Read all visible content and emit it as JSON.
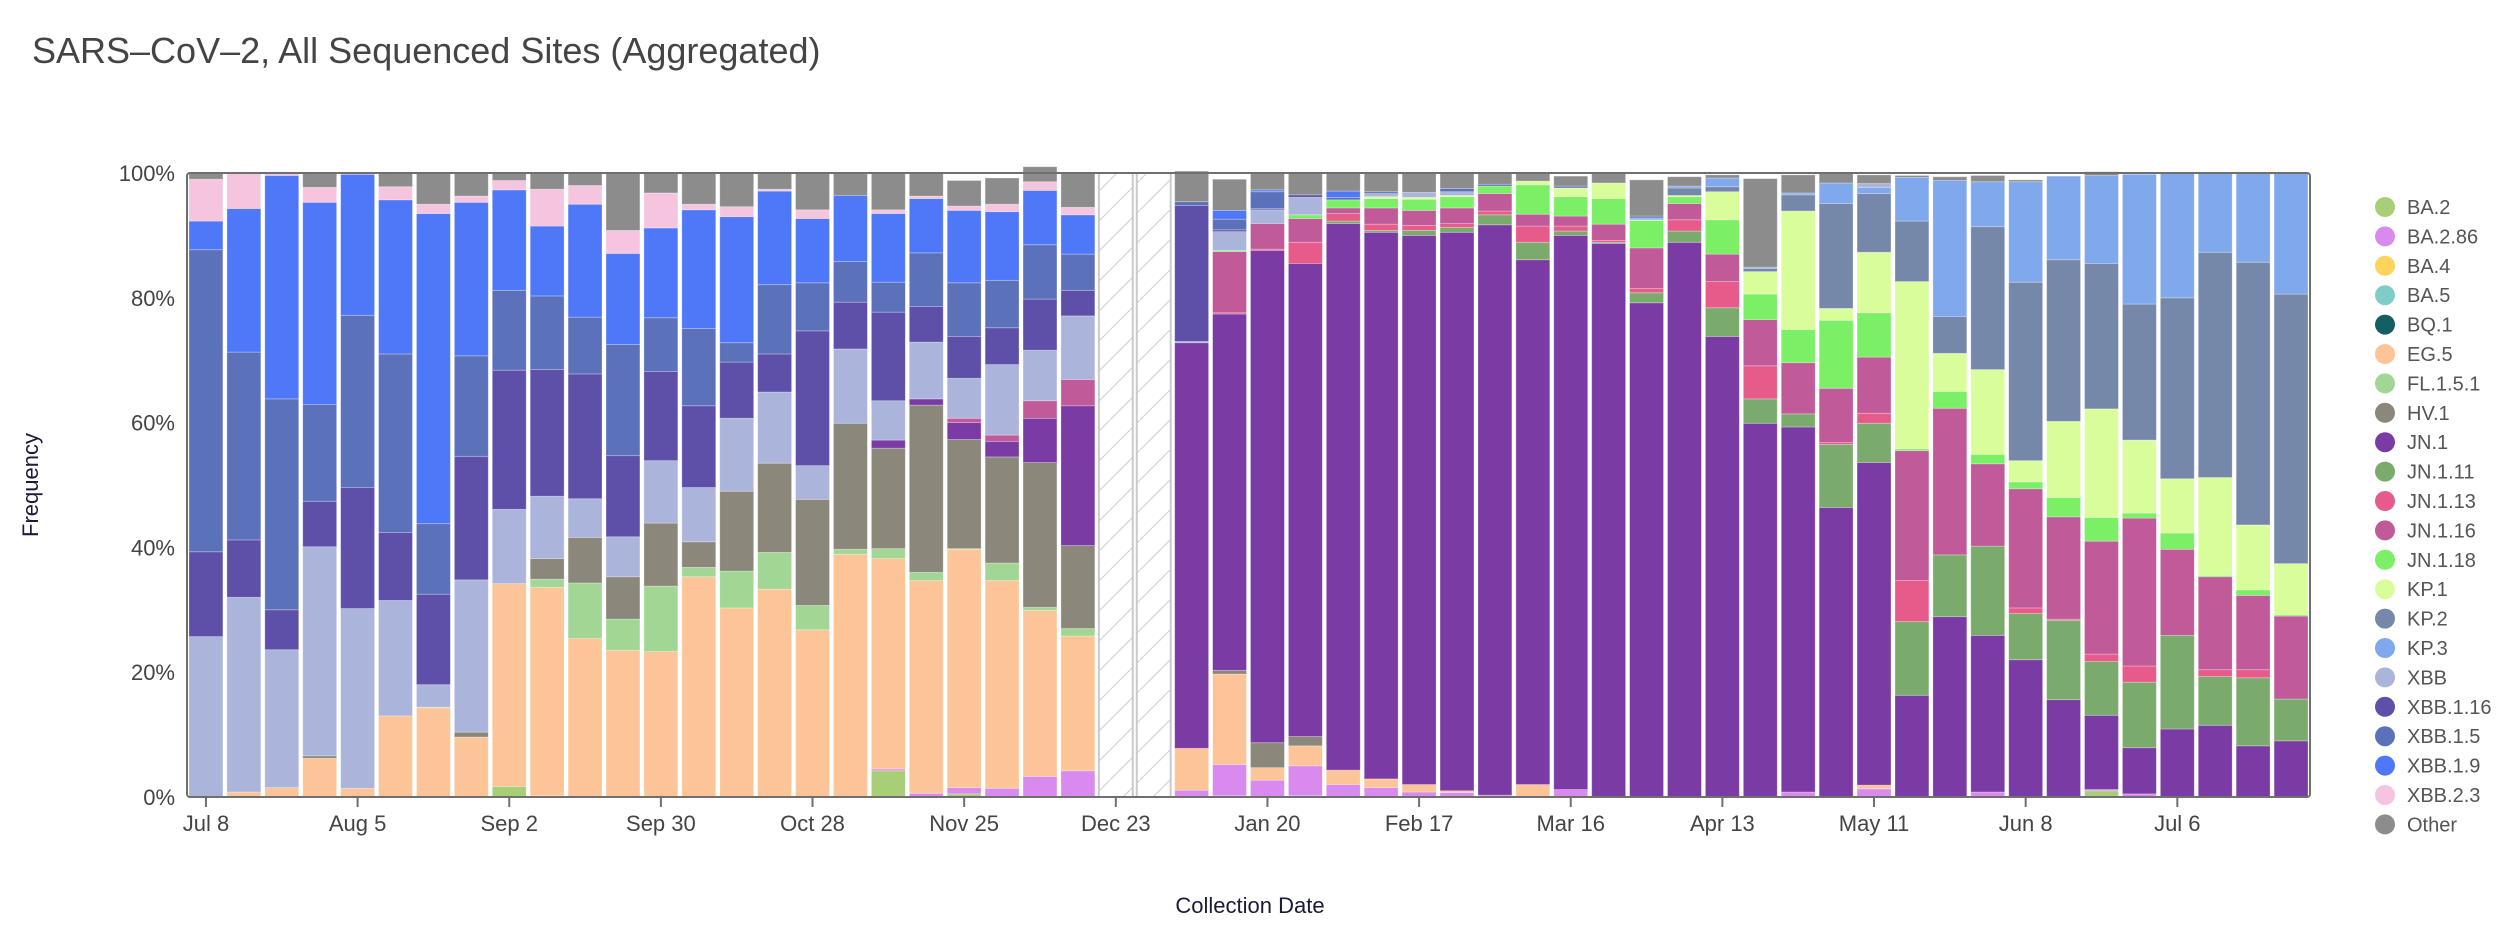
{
  "chart_data": {
    "type": "bar",
    "stacked": true,
    "title": "SARS–CoV–2, All Sequenced Sites (Aggregated)",
    "xlabel": "Collection Date",
    "ylabel": "Frequency",
    "ylim": [
      0,
      100
    ],
    "y_ticks": [
      "0%",
      "20%",
      "40%",
      "60%",
      "80%",
      "100%"
    ],
    "x_tick_labels": [
      {
        "label": "Jul 8",
        "index": 0
      },
      {
        "label": "Aug 5",
        "index": 4
      },
      {
        "label": "Sep 2",
        "index": 8
      },
      {
        "label": "Sep 30",
        "index": 12
      },
      {
        "label": "Oct 28",
        "index": 16
      },
      {
        "label": "Nov 25",
        "index": 20
      },
      {
        "label": "Dec 23",
        "index": 24
      },
      {
        "label": "Jan 20",
        "index": 28
      },
      {
        "label": "Feb 17",
        "index": 32
      },
      {
        "label": "Mar 16",
        "index": 36
      },
      {
        "label": "Apr 13",
        "index": 40
      },
      {
        "label": "May 11",
        "index": 44
      },
      {
        "label": "Jun 8",
        "index": 48
      },
      {
        "label": "Jul 6",
        "index": 52
      }
    ],
    "no_data_indices": [
      24,
      25
    ],
    "legend_position": "right",
    "series": [
      {
        "name": "BA.2",
        "color": "#a8cf78"
      },
      {
        "name": "BA.2.86",
        "color": "#d98aef"
      },
      {
        "name": "BA.4",
        "color": "#fdd35b"
      },
      {
        "name": "BA.5",
        "color": "#80cdc8"
      },
      {
        "name": "BQ.1",
        "color": "#145f64"
      },
      {
        "name": "EG.5",
        "color": "#fdc597"
      },
      {
        "name": "FL.1.5.1",
        "color": "#a2d695"
      },
      {
        "name": "HV.1",
        "color": "#8b887b"
      },
      {
        "name": "JN.1",
        "color": "#7b3ba4"
      },
      {
        "name": "JN.1.11",
        "color": "#7aab6c"
      },
      {
        "name": "JN.1.13",
        "color": "#e65b8a"
      },
      {
        "name": "JN.1.16",
        "color": "#c05a98"
      },
      {
        "name": "JN.1.18",
        "color": "#7bef65"
      },
      {
        "name": "KP.1",
        "color": "#dafd9c"
      },
      {
        "name": "KP.2",
        "color": "#7688aa"
      },
      {
        "name": "KP.3",
        "color": "#80a8ec"
      },
      {
        "name": "XBB",
        "color": "#abb4db"
      },
      {
        "name": "XBB.1.16",
        "color": "#5e50a8"
      },
      {
        "name": "XBB.1.5",
        "color": "#5b71b9"
      },
      {
        "name": "XBB.1.9",
        "color": "#4f78f8"
      },
      {
        "name": "XBB.2.3",
        "color": "#f5c5e0"
      },
      {
        "name": "Other",
        "color": "#8c8c8c"
      }
    ],
    "bars": [
      {
        "week": "Jul 8",
        "stack": {
          "XBB": 25.7,
          "XBB.1.16": 13.6,
          "XBB.1.5": 48.4,
          "XBB.1.9": 4.6,
          "XBB.2.3": 6.7,
          "Other": 1.0
        }
      },
      {
        "week": "Jul 15",
        "stack": {
          "EG.5": 0.8,
          "XBB": 31.2,
          "XBB.1.16": 9.2,
          "XBB.1.5": 30.1,
          "XBB.1.9": 23.0,
          "XBB.2.3": 5.7
        }
      },
      {
        "week": "Jul 22",
        "stack": {
          "EG.5": 1.5,
          "XBB": 22.1,
          "XBB.1.16": 6.4,
          "XBB.1.5": 33.8,
          "XBB.1.9": 35.8,
          "XBB.2.3": 0.4
        }
      },
      {
        "week": "Jul 29",
        "stack": {
          "EG.5": 6.2,
          "HV.1": 0.4,
          "XBB": 33.5,
          "XBB.1.16": 7.3,
          "XBB.1.5": 15.5,
          "XBB.1.9": 32.4,
          "XBB.2.3": 2.4,
          "Other": 2.3
        }
      },
      {
        "week": "Aug 5",
        "stack": {
          "EG.5": 1.4,
          "XBB": 28.8,
          "XBB.1.16": 19.4,
          "XBB.1.5": 27.6,
          "XBB.1.9": 22.6,
          "XBB.2.3": 0.2
        }
      },
      {
        "week": "Aug 12",
        "stack": {
          "EG.5": 13.0,
          "XBB": 18.5,
          "XBB.1.16": 10.9,
          "XBB.1.5": 28.6,
          "XBB.1.9": 24.7,
          "XBB.2.3": 2.1,
          "Other": 2.2
        }
      },
      {
        "week": "Aug 19",
        "stack": {
          "EG.5": 14.3,
          "FL.1.5.1": 0.1,
          "XBB": 3.6,
          "XBB.1.16": 14.5,
          "XBB.1.5": 11.3,
          "XBB.1.9": 49.7,
          "XBB.2.3": 1.5,
          "Other": 5.0
        }
      },
      {
        "week": "Aug 26",
        "stack": {
          "EG.5": 9.6,
          "HV.1": 0.8,
          "XBB": 24.4,
          "XBB.1.16": 19.8,
          "XBB.1.5": 16.1,
          "XBB.1.9": 24.6,
          "XBB.2.3": 1.0,
          "Other": 3.7
        }
      },
      {
        "week": "Sep 2",
        "stack": {
          "BA.2": 1.7,
          "EG.5": 32.5,
          "XBB": 11.9,
          "XBB.1.16": 22.3,
          "XBB.1.5": 12.8,
          "XBB.1.9": 16.1,
          "XBB.2.3": 1.5,
          "Other": 1.2
        }
      },
      {
        "week": "Sep 9",
        "stack": {
          "BA.2": 0.2,
          "EG.5": 33.4,
          "FL.1.5.1": 1.3,
          "HV.1": 3.3,
          "XBB": 10.0,
          "XBB.1.16": 20.3,
          "XBB.1.5": 11.8,
          "XBB.1.9": 11.2,
          "XBB.2.3": 5.9,
          "Other": 2.6
        }
      },
      {
        "week": "Sep 16",
        "stack": {
          "BA.2": 0.1,
          "EG.5": 25.3,
          "FL.1.5.1": 8.9,
          "HV.1": 7.3,
          "XBB": 6.2,
          "XBB.1.16": 20.0,
          "XBB.1.5": 9.1,
          "XBB.1.9": 18.1,
          "XBB.2.3": 3.0,
          "Other": 2.0
        }
      },
      {
        "week": "Sep 23",
        "stack": {
          "EG.5": 23.5,
          "FL.1.5.1": 5.0,
          "HV.1": 6.8,
          "XBB": 6.4,
          "XBB.1.16": 13.0,
          "XBB.1.5": 17.8,
          "XBB.1.9": 14.6,
          "XBB.2.3": 3.7,
          "Other": 9.2
        }
      },
      {
        "week": "Sep 30",
        "stack": {
          "EG.5": 23.3,
          "FL.1.5.1": 10.5,
          "HV.1": 10.1,
          "XBB": 10.0,
          "XBB.1.16": 14.3,
          "XBB.1.5": 8.6,
          "XBB.1.9": 14.4,
          "XBB.2.3": 5.6,
          "Other": 3.2
        }
      },
      {
        "week": "Oct 7",
        "stack": {
          "EG.5": 35.3,
          "FL.1.5.1": 1.5,
          "HV.1": 4.1,
          "XBB": 8.7,
          "XBB.1.16": 13.1,
          "XBB.1.5": 12.4,
          "XBB.1.9": 19.0,
          "XBB.2.3": 0.9,
          "Other": 4.9
        }
      },
      {
        "week": "Oct 14",
        "stack": {
          "EG.5": 30.3,
          "FL.1.5.1": 5.9,
          "HV.1": 12.8,
          "XBB": 11.7,
          "XBB.1.16": 9.0,
          "XBB.1.5": 3.1,
          "XBB.1.9": 20.2,
          "XBB.2.3": 1.6,
          "Other": 5.4
        }
      },
      {
        "week": "Oct 21",
        "stack": {
          "EG.5": 33.3,
          "FL.1.5.1": 5.9,
          "HV.1": 14.3,
          "XBB": 11.4,
          "XBB.1.16": 6.1,
          "XBB.1.5": 11.1,
          "XBB.1.9": 15.0,
          "XBB.2.3": 0.3,
          "Other": 2.6
        }
      },
      {
        "week": "Oct 28",
        "stack": {
          "EG.5": 26.8,
          "FL.1.5.1": 3.9,
          "HV.1": 17.0,
          "XBB": 5.4,
          "XBB.1.16": 21.6,
          "XBB.1.5": 7.7,
          "XBB.1.9": 10.3,
          "XBB.2.3": 1.4,
          "Other": 5.9
        }
      },
      {
        "week": "Nov 4",
        "stack": {
          "EG.5": 38.9,
          "FL.1.5.1": 0.8,
          "HV.1": 20.2,
          "XBB": 11.9,
          "XBB.1.16": 7.5,
          "XBB.1.5": 6.5,
          "XBB.1.9": 10.6,
          "Other": 3.6
        }
      },
      {
        "week": "Nov 11",
        "stack": {
          "BA.2": 4.2,
          "BA.2.86": 0.3,
          "EG.5": 33.7,
          "FL.1.5.1": 1.6,
          "HV.1": 16.1,
          "JN.1": 1.3,
          "XBB": 6.3,
          "XBB.1.16": 14.2,
          "XBB.1.5": 4.8,
          "XBB.1.9": 11.0,
          "XBB.2.3": 0.6,
          "Other": 5.9
        }
      },
      {
        "week": "Nov 18",
        "stack": {
          "BA.2.86": 0.6,
          "EG.5": 34.1,
          "FL.1.5.1": 1.3,
          "HV.1": 26.8,
          "JN.1": 1.0,
          "XBB": 9.1,
          "XBB.1.16": 5.7,
          "XBB.1.5": 8.6,
          "XBB.1.9": 8.7,
          "XBB.2.3": 0.4,
          "Other": 3.7
        }
      },
      {
        "week": "Nov 25",
        "stack": {
          "BA.2": 0.5,
          "BA.2.86": 1.0,
          "EG.5": 38.2,
          "FL.1.5.1": 0.1,
          "HV.1": 17.5,
          "JN.1": 2.7,
          "JN.1.16": 0.7,
          "XBB": 6.4,
          "XBB.1.16": 6.7,
          "XBB.1.5": 8.6,
          "XBB.1.9": 11.6,
          "XBB.2.3": 0.7,
          "Other": 4.1
        }
      },
      {
        "week": "Dec 2",
        "stack": {
          "BA.2.86": 1.4,
          "EG.5": 33.3,
          "FL.1.5.1": 2.8,
          "HV.1": 17.0,
          "JN.1": 2.5,
          "JN.1.16": 1.0,
          "XBB": 11.3,
          "XBB.1.16": 5.9,
          "XBB.1.5": 7.6,
          "XBB.1.9": 11.0,
          "XBB.2.3": 1.2,
          "Other": 4.2
        }
      },
      {
        "week": "Dec 9",
        "stack": {
          "BA.2.86": 3.3,
          "EG.5": 26.6,
          "FL.1.5.1": 0.5,
          "HV.1": 23.2,
          "JN.1": 7.1,
          "JN.1.16": 2.8,
          "XBB": 8.1,
          "XBB.1.16": 8.2,
          "XBB.1.5": 8.7,
          "XBB.1.9": 8.7,
          "XBB.2.3": 1.4,
          "Other": 2.4
        }
      },
      {
        "week": "Dec 16",
        "stack": {
          "BA.2.86": 4.2,
          "EG.5": 21.6,
          "FL.1.5.1": 1.2,
          "HV.1": 13.3,
          "JN.1": 22.4,
          "JN.1.16": 4.2,
          "XBB": 10.2,
          "XBB.1.16": 4.1,
          "XBB.1.5": 5.8,
          "XBB.1.9": 6.3,
          "XBB.2.3": 1.2,
          "Other": 5.5
        }
      },
      {
        "week": "Dec 23",
        "stack": {}
      },
      {
        "week": "Dec 30",
        "stack": {}
      },
      {
        "week": "Jan 6",
        "stack": {
          "BA.2.86": 1.1,
          "EG.5": 6.7,
          "JN.1": 65.0,
          "XBB": 0.2,
          "XBB.1.16": 21.8,
          "XBB.1.5": 0.6,
          "Other": 4.9
        }
      },
      {
        "week": "Jan 13",
        "stack": {
          "BA.2.86": 5.0,
          "BA.2": 0.2,
          "EG.5": 14.5,
          "HV.1": 0.6,
          "JN.1": 57.1,
          "JN.1.13": 0.2,
          "JN.1.16": 9.8,
          "JN.1.18": 0.2,
          "XBB": 3.0,
          "XBB.1.16": 0.3,
          "XBB.1.5": 1.7,
          "XBB.1.9": 1.4,
          "Other": 5.0
        }
      },
      {
        "week": "Jan 20",
        "stack": {
          "BA.2.86": 2.7,
          "EG.5": 2.0,
          "HV.1": 4.0,
          "JN.1": 78.9,
          "JN.1.13": 0.2,
          "JN.1.16": 4.1,
          "XBB": 2.2,
          "XBB.1.16": 0.2,
          "XBB.1.5": 2.7,
          "XBB.1.9": 0.3,
          "Other": 2.8
        }
      },
      {
        "week": "Jan 27",
        "stack": {
          "BA.2": 0.2,
          "BA.2.86": 4.8,
          "EG.5": 3.2,
          "HV.1": 1.5,
          "JN.1": 75.8,
          "JN.1.13": 3.4,
          "JN.1.16": 3.8,
          "JN.1.18": 0.6,
          "XBB": 2.8,
          "XBB.1.16": 0.4,
          "Other": 3.4
        }
      },
      {
        "week": "Feb 3",
        "stack": {
          "BA.2.86": 2.0,
          "EG.5": 2.3,
          "JN.1": 87.6,
          "JN.1.11": 0.4,
          "JN.1.13": 1.2,
          "JN.1.16": 0.9,
          "JN.1.18": 1.3,
          "XBB.1.5": 0.4,
          "XBB.1.9": 1.0,
          "Other": 2.9
        }
      },
      {
        "week": "Feb 10",
        "stack": {
          "BA.2.86": 1.5,
          "EG.5": 1.4,
          "JN.1": 87.6,
          "JN.1.11": 0.3,
          "JN.1.13": 1.0,
          "JN.1.16": 2.6,
          "JN.1.18": 1.5,
          "KP.1": 0.3,
          "XBB": 0.5,
          "XBB.1.5": 0.3,
          "Other": 3.0
        }
      },
      {
        "week": "Feb 17",
        "stack": {
          "BA.2.86": 0.8,
          "EG.5": 1.2,
          "JN.1": 88.0,
          "JN.1.11": 0.8,
          "JN.1.13": 0.8,
          "JN.1.16": 2.4,
          "JN.1.18": 1.8,
          "KP.1": 0.3,
          "XBB": 0.8,
          "Other": 3.1
        }
      },
      {
        "week": "Feb 24",
        "stack": {
          "BA.2.86": 0.7,
          "EG.5": 0.3,
          "JN.1": 89.5,
          "JN.1.11": 0.8,
          "JN.1.13": 0.6,
          "JN.1.16": 2.5,
          "JN.1.18": 1.8,
          "KP.1": 0.2,
          "XBB": 0.6,
          "XBB.1.5": 0.5,
          "Other": 2.5
        }
      },
      {
        "week": "Mar 2",
        "stack": {
          "BA.2.86": 0.3,
          "JN.1": 91.4,
          "JN.1.11": 1.6,
          "JN.1.13": 0.6,
          "JN.1.16": 2.8,
          "JN.1.18": 1.2,
          "XBB.1.5": 0.3,
          "Other": 1.8
        }
      },
      {
        "week": "Mar 9",
        "stack": {
          "EG.5": 2.0,
          "JN.1": 84.1,
          "JN.1.11": 2.8,
          "JN.1.13": 2.6,
          "JN.1.16": 1.9,
          "JN.1.18": 4.7,
          "KP.1": 0.6,
          "Other": 1.3
        }
      },
      {
        "week": "Mar 16",
        "stack": {
          "BA.2.86": 1.2,
          "JN.1": 88.8,
          "JN.1.11": 0.7,
          "JN.1.13": 0.8,
          "JN.1.16": 1.6,
          "JN.1.18": 3.1,
          "KP.1": 1.4,
          "XBB.1.5": 0.3,
          "Other": 1.6
        }
      },
      {
        "week": "Mar 23",
        "stack": {
          "JN.1": 88.7,
          "JN.1.11": 0.2,
          "JN.1.13": 0.3,
          "JN.1.16": 2.6,
          "JN.1.18": 4.1,
          "KP.1": 2.5,
          "Other": 1.6
        }
      },
      {
        "week": "Mar 30",
        "stack": {
          "JN.1": 79.2,
          "JN.1.11": 1.6,
          "JN.1.13": 0.7,
          "JN.1.16": 6.5,
          "JN.1.18": 4.4,
          "KP.1": 0.1,
          "XBB.1.5": 0.3,
          "KP.3": 0.3,
          "Other": 5.8
        }
      },
      {
        "week": "Apr 6",
        "stack": {
          "JN.1": 88.9,
          "JN.1.11": 1.8,
          "JN.1.13": 1.8,
          "JN.1.16": 2.6,
          "JN.1.18": 1.1,
          "KP.1": 0.2,
          "KP.2": 1.2,
          "KP.3": 0.3,
          "Other": 1.5
        }
      },
      {
        "week": "Apr 13",
        "stack": {
          "JN.1": 73.8,
          "JN.1.11": 4.6,
          "JN.1.13": 4.2,
          "JN.1.16": 4.4,
          "JN.1.18": 5.5,
          "KP.1": 4.5,
          "KP.2": 0.8,
          "KP.3": 1.4,
          "Other": 0.5
        }
      },
      {
        "week": "Apr 20",
        "stack": {
          "JN.1": 59.9,
          "JN.1.11": 3.9,
          "JN.1.13": 5.3,
          "JN.1.16": 7.4,
          "JN.1.18": 4.1,
          "KP.1": 3.6,
          "KP.2": 0.5,
          "KP.3": 0.2,
          "Other": 14.2
        }
      },
      {
        "week": "Apr 27",
        "stack": {
          "BA.2.86": 0.8,
          "JN.1": 58.5,
          "JN.1.11": 2.1,
          "JN.1.16": 8.2,
          "JN.1.18": 5.3,
          "KP.1": 19.0,
          "KP.2": 2.6,
          "KP.3": 0.3,
          "Other": 2.9
        }
      },
      {
        "week": "May 4",
        "stack": {
          "JN.1": 46.4,
          "JN.1.11": 10.1,
          "JN.1.13": 0.3,
          "JN.1.16": 8.7,
          "JN.1.18": 10.9,
          "KP.1": 1.9,
          "KP.2": 16.8,
          "KP.3": 3.3,
          "Other": 1.6
        }
      },
      {
        "week": "May 11",
        "stack": {
          "BA.2.86": 1.3,
          "EG.5": 0.6,
          "JN.1": 51.7,
          "JN.1.11": 6.3,
          "JN.1.13": 1.6,
          "JN.1.16": 9.0,
          "JN.1.18": 7.1,
          "KP.1": 9.7,
          "KP.2": 9.4,
          "KP.3": 1.0,
          "XBB": 0.6,
          "Other": 1.4
        }
      },
      {
        "week": "May 18",
        "stack": {
          "JN.1": 16.3,
          "JN.1.11": 11.8,
          "JN.1.13": 6.6,
          "JN.1.16": 20.8,
          "JN.1.18": 0.3,
          "KP.1": 26.8,
          "KP.2": 9.7,
          "KP.3": 7.0,
          "Other": 0.3
        }
      },
      {
        "week": "May 25",
        "stack": {
          "JN.1": 28.9,
          "JN.1.11": 9.9,
          "JN.1.16": 23.5,
          "JN.1.18": 2.7,
          "KP.1": 6.1,
          "KP.2": 5.9,
          "KP.3": 21.8,
          "Other": 0.6
        }
      },
      {
        "week": "Jun 1",
        "stack": {
          "BA.2.86": 0.8,
          "JN.1": 25.1,
          "JN.1.11": 14.3,
          "JN.1.16": 13.2,
          "JN.1.18": 1.5,
          "KP.1": 13.6,
          "KP.2": 22.9,
          "KP.3": 7.2,
          "Other": 1.0
        }
      },
      {
        "week": "Jun 8",
        "stack": {
          "JN.1": 22.0,
          "JN.1.11": 7.4,
          "JN.1.13": 0.9,
          "JN.1.16": 19.1,
          "JN.1.18": 1.1,
          "KP.1": 3.4,
          "KP.2": 28.6,
          "KP.3": 16.1,
          "Other": 0.3
        }
      },
      {
        "week": "Jun 15",
        "stack": {
          "JN.1": 15.6,
          "JN.1.11": 12.7,
          "JN.1.13": 0.2,
          "JN.1.16": 16.4,
          "JN.1.18": 3.1,
          "KP.1": 12.2,
          "KP.2": 25.9,
          "KP.3": 13.4
        }
      },
      {
        "week": "Jun 22",
        "stack": {
          "BA.2": 1.0,
          "BA.2.86": 0.2,
          "JN.1": 11.9,
          "JN.1.11": 8.6,
          "JN.1.13": 1.2,
          "JN.1.16": 18.1,
          "JN.1.18": 3.8,
          "KP.1": 17.4,
          "KP.2": 23.3,
          "KP.3": 14.1,
          "Other": 0.6
        }
      },
      {
        "week": "Jun 29",
        "stack": {
          "BA.2.86": 0.5,
          "JN.1": 7.4,
          "JN.1.11": 10.5,
          "JN.1.13": 2.6,
          "JN.1.16": 23.7,
          "JN.1.18": 0.8,
          "KP.1": 11.7,
          "KP.2": 21.8,
          "KP.3": 20.8
        }
      },
      {
        "week": "Jul 6",
        "stack": {
          "JN.1": 10.9,
          "JN.1.11": 15.0,
          "JN.1.16": 13.8,
          "JN.1.18": 2.6,
          "KP.1": 8.7,
          "KP.2": 29.0,
          "KP.3": 20.0
        }
      },
      {
        "week": "Jul 13",
        "stack": {
          "JN.1": 11.5,
          "JN.1.11": 7.8,
          "JN.1.13": 1.1,
          "JN.1.16": 14.9,
          "JN.1.18": 0.2,
          "KP.1": 15.7,
          "KP.2": 36.1,
          "KP.3": 12.7
        }
      },
      {
        "week": "Jul 20",
        "stack": {
          "JN.1": 8.2,
          "JN.1.11": 10.9,
          "JN.1.13": 1.3,
          "JN.1.16": 11.9,
          "JN.1.18": 0.9,
          "KP.1": 10.4,
          "KP.2": 42.1,
          "KP.3": 14.3
        }
      },
      {
        "week": "Jul 27",
        "stack": {
          "JN.1": 9.0,
          "JN.1.11": 6.7,
          "JN.1.16": 13.3,
          "JN.1.18": 0.2,
          "KP.1": 8.2,
          "KP.2": 43.2,
          "KP.3": 19.4
        }
      }
    ]
  }
}
